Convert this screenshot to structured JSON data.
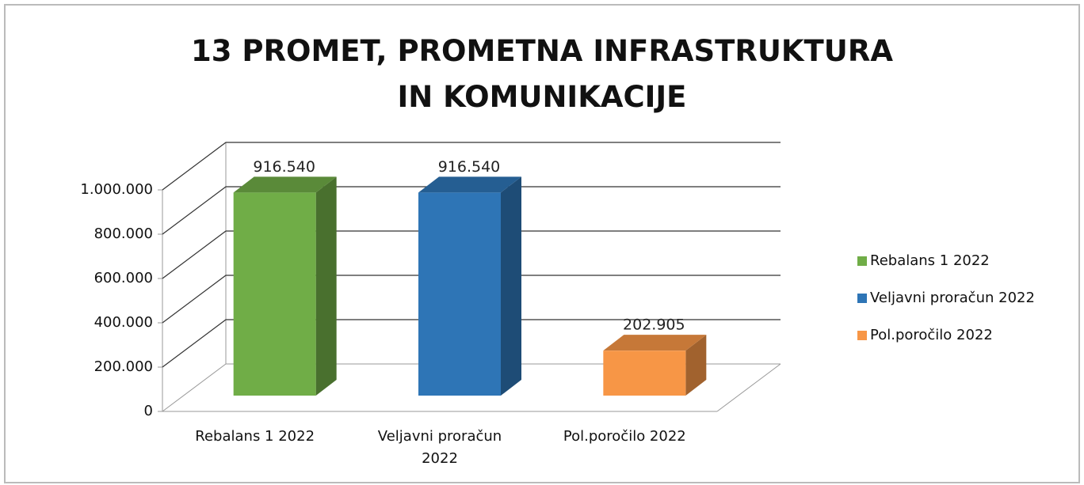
{
  "chart_data": {
    "type": "bar3d",
    "title": "13 PROMET, PROMETNA INFRASTRUKTURA IN KOMUNIKACIJE",
    "categories": [
      "Rebalans 1 2022",
      "Veljavni proračun 2022",
      "Pol.poročilo 2022"
    ],
    "values": [
      916540,
      916540,
      202905
    ],
    "value_labels": [
      "916.540",
      "916.540",
      "202.905"
    ],
    "colors": [
      "#70ad47",
      "#2e75b6",
      "#f79646"
    ],
    "ylim": [
      0,
      1000000
    ],
    "yticks": [
      0,
      {
        "value": 200000,
        "label": "200.000"
      },
      {
        "value": 400000,
        "label": "400.000"
      },
      {
        "value": 600000,
        "label": "600.000"
      },
      {
        "value": 800000,
        "label": "800.000"
      },
      {
        "value": 1000000,
        "label": "1.000.000"
      }
    ],
    "grid": true,
    "legend": "right"
  }
}
